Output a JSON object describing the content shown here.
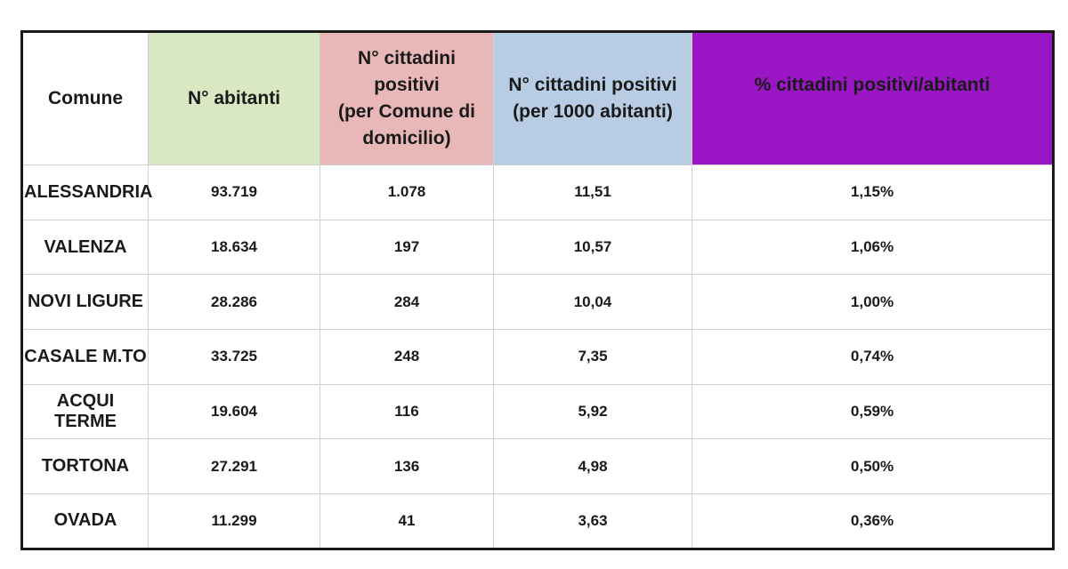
{
  "table": {
    "headers": {
      "comune": "Comune",
      "abitanti": "N° abitanti",
      "positivi": "N° cittadini\npositivi\n(per Comune di\ndomicilio)",
      "per1000": "N° cittadini positivi\n(per 1000 abitanti)",
      "percentuale": "% cittadini positivi/abitanti"
    },
    "rows": [
      {
        "comune": "ALESSANDRIA",
        "abitanti": "93.719",
        "positivi": "1.078",
        "per1000": "11,51",
        "percentuale": "1,15%"
      },
      {
        "comune": "VALENZA",
        "abitanti": "18.634",
        "positivi": "197",
        "per1000": "10,57",
        "percentuale": "1,06%"
      },
      {
        "comune": "NOVI LIGURE",
        "abitanti": "28.286",
        "positivi": "284",
        "per1000": "10,04",
        "percentuale": "1,00%"
      },
      {
        "comune": "CASALE M.TO",
        "abitanti": "33.725",
        "positivi": "248",
        "per1000": "7,35",
        "percentuale": "0,74%"
      },
      {
        "comune": "ACQUI TERME",
        "abitanti": "19.604",
        "positivi": "116",
        "per1000": "5,92",
        "percentuale": "0,59%"
      },
      {
        "comune": "TORTONA",
        "abitanti": "27.291",
        "positivi": "136",
        "per1000": "4,98",
        "percentuale": "0,50%"
      },
      {
        "comune": "OVADA",
        "abitanti": "11.299",
        "positivi": "41",
        "per1000": "3,63",
        "percentuale": "0,36%"
      }
    ]
  },
  "colors": {
    "abitanti_header": "#d9e7c3",
    "positivi_header": "#e8b7b7",
    "per1000_header": "#b8cde4",
    "percentuale_header": "#9a16c4"
  }
}
